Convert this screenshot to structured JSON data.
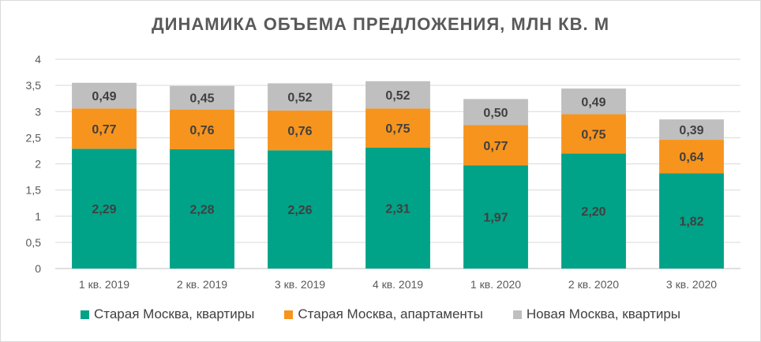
{
  "chart_data": {
    "type": "bar",
    "stacked": true,
    "title": "ДИНАМИКА ОБЪЕМА ПРЕДЛОЖЕНИЯ, МЛН КВ. М",
    "categories": [
      "1 кв. 2019",
      "2 кв. 2019",
      "3 кв. 2019",
      "4 кв. 2019",
      "1 кв. 2020",
      "2 кв. 2020",
      "3 кв. 2020"
    ],
    "series": [
      {
        "name": "Старая Москва, квартиры",
        "color": "#00a388",
        "values": [
          2.29,
          2.28,
          2.26,
          2.31,
          1.97,
          2.2,
          1.82
        ],
        "labels": [
          "2,29",
          "2,28",
          "2,26",
          "2,31",
          "1,97",
          "2,20",
          "1,82"
        ]
      },
      {
        "name": "Старая Москва, апартаменты",
        "color": "#f7941d",
        "values": [
          0.77,
          0.76,
          0.76,
          0.75,
          0.77,
          0.75,
          0.64
        ],
        "labels": [
          "0,77",
          "0,76",
          "0,76",
          "0,75",
          "0,77",
          "0,75",
          "0,64"
        ]
      },
      {
        "name": "Новая Москва, квартиры",
        "color": "#bfbfbf",
        "values": [
          0.49,
          0.45,
          0.52,
          0.52,
          0.5,
          0.49,
          0.39
        ],
        "labels": [
          "0,49",
          "0,45",
          "0,52",
          "0,52",
          "0,50",
          "0,49",
          "0,39"
        ]
      }
    ],
    "ylim": [
      0,
      4
    ],
    "yticks": [
      "0",
      "0,5",
      "1",
      "1,5",
      "2",
      "2,5",
      "3",
      "3,5",
      "4"
    ],
    "grid": true,
    "legend_position": "bottom"
  }
}
